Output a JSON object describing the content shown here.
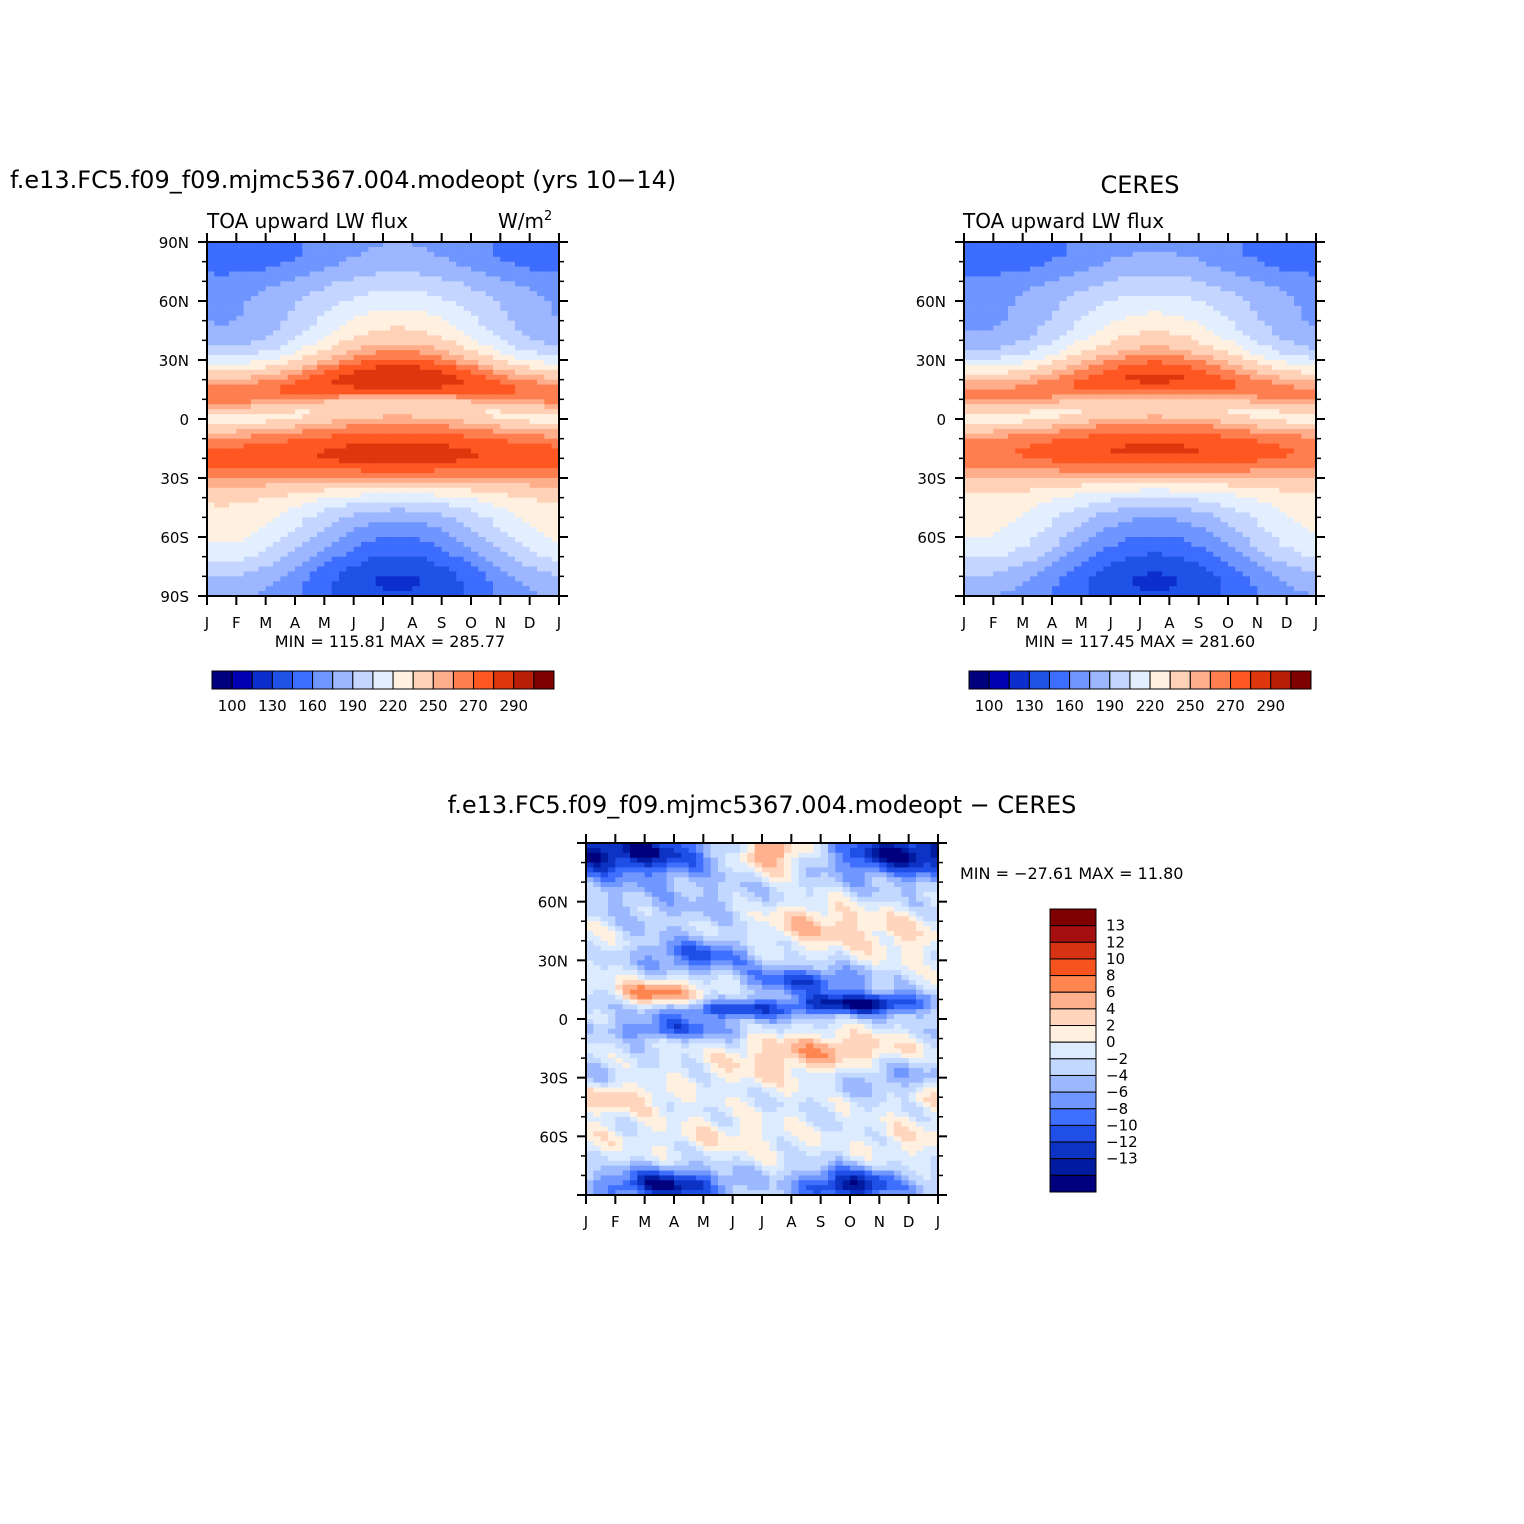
{
  "chart_data": [
    {
      "id": "model",
      "type": "heatmap",
      "title": "f.e13.FC5.f09_f09.mjmc5367.004.modeopt (yrs 10−14)",
      "left_label": "TOA upward LW flux",
      "right_label": "W/m",
      "right_label_sup": "2",
      "x_ticks": [
        "J",
        "F",
        "M",
        "A",
        "M",
        "J",
        "J",
        "A",
        "S",
        "O",
        "N",
        "D",
        "J"
      ],
      "y_ticks": [
        "90N",
        "60N",
        "30N",
        "0",
        "30S",
        "60S",
        "90S"
      ],
      "ylim": [
        -90,
        90
      ],
      "stats": "MIN =  115.81  MAX =  285.77",
      "colorbar_labels": [
        "100",
        "130",
        "160",
        "190",
        "220",
        "250",
        "270",
        "290"
      ],
      "field": {
        "kind": "abs",
        "amp": 1.0,
        "ntrop": 1.0,
        "stropShift": 0.0
      }
    },
    {
      "id": "obs",
      "type": "heatmap",
      "title": "CERES",
      "left_label": "TOA upward LW flux",
      "right_label": "",
      "right_label_sup": "",
      "x_ticks": [
        "J",
        "F",
        "M",
        "A",
        "M",
        "J",
        "J",
        "A",
        "S",
        "O",
        "N",
        "D",
        "J"
      ],
      "y_ticks": [
        "",
        "60N",
        "30N",
        "0",
        "30S",
        "60S",
        ""
      ],
      "ylim": [
        -90,
        90
      ],
      "stats": "MIN =  117.45  MAX =  281.60",
      "colorbar_labels": [
        "100",
        "130",
        "160",
        "190",
        "220",
        "250",
        "270",
        "290"
      ],
      "field": {
        "kind": "abs",
        "amp": 0.97,
        "ntrop": 0.96,
        "stropShift": 2.0
      }
    },
    {
      "id": "diff",
      "type": "heatmap",
      "title": "f.e13.FC5.f09_f09.mjmc5367.004.modeopt − CERES",
      "x_ticks": [
        "J",
        "F",
        "M",
        "A",
        "M",
        "J",
        "J",
        "A",
        "S",
        "O",
        "N",
        "D",
        "J"
      ],
      "y_ticks": [
        "",
        "60N",
        "30N",
        "0",
        "30S",
        "60S",
        ""
      ],
      "ylim": [
        -90,
        90
      ],
      "stats": "MIN = −27.61  MAX =   11.80",
      "colorbar_labels": [
        "13",
        "12",
        "10",
        "8",
        "6",
        "4",
        "2",
        "0",
        "−2",
        "−4",
        "−6",
        "−8",
        "−10",
        "−12",
        "−13"
      ],
      "field": {
        "kind": "diff"
      }
    }
  ],
  "colors": {
    "abs_scale": [
      "#00007f",
      "#0000b2",
      "#0c2ecc",
      "#1f52e6",
      "#3d6dff",
      "#6f95ff",
      "#9cb6ff",
      "#c4d6ff",
      "#e3efff",
      "#fff0e0",
      "#ffd2b8",
      "#ffae8c",
      "#ff7e50",
      "#ff5722",
      "#e0360e",
      "#b81e05",
      "#7f0000"
    ],
    "diff_scale": [
      "#00007f",
      "#001ba0",
      "#0d33c4",
      "#1f4fe6",
      "#3f6fff",
      "#7096ff",
      "#9cb8ff",
      "#c3d8ff",
      "#ddebff",
      "#fff0e0",
      "#ffd5bd",
      "#ffb08c",
      "#ff8650",
      "#f5541f",
      "#d63214",
      "#a50f0f",
      "#7f0000"
    ]
  }
}
